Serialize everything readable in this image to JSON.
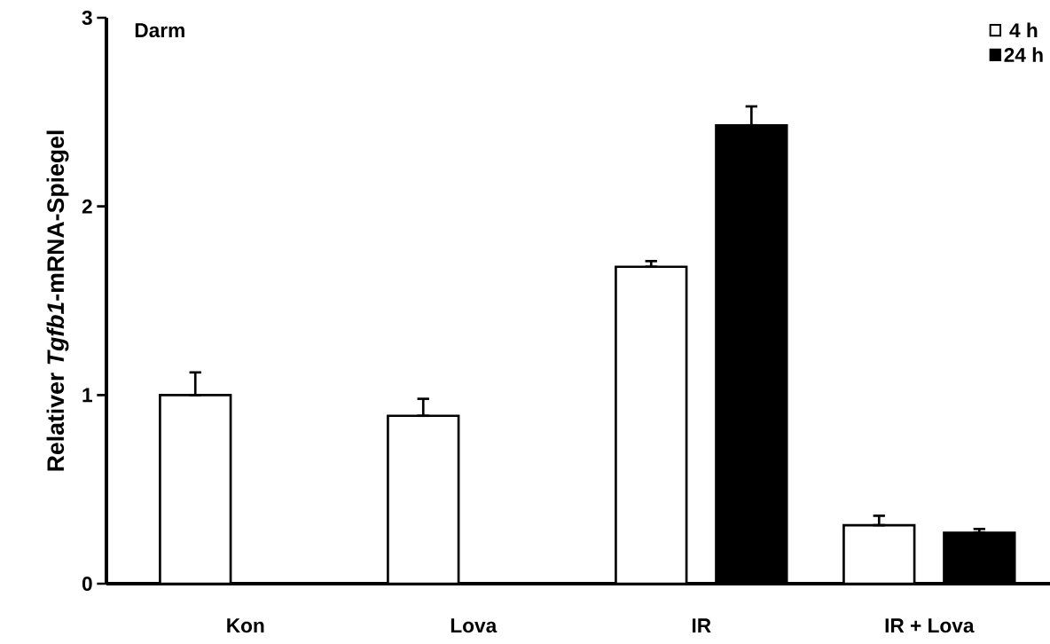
{
  "chart_data": {
    "type": "bar",
    "title": "Darm",
    "ylabel": "Relativer *Tgfb1*-mRNA-Spiegel",
    "categories": [
      "Kon",
      "Lova",
      "IR",
      "IR + Lova"
    ],
    "series": [
      {
        "name": "4 h",
        "color": "#ffffff",
        "values": [
          1.0,
          0.89,
          1.68,
          0.31
        ],
        "errors": [
          [
            1.0,
            1.12
          ],
          [
            0.89,
            0.98
          ],
          [
            1.68,
            1.71
          ],
          [
            0.31,
            0.36
          ]
        ]
      },
      {
        "name": "24 h",
        "color": "#000000",
        "values": [
          null,
          null,
          2.43,
          0.27
        ],
        "errors": [
          null,
          null,
          [
            2.43,
            2.53
          ],
          [
            0.27,
            0.29
          ]
        ]
      }
    ],
    "ylim": [
      0,
      3
    ],
    "yticks": [
      0,
      1,
      2,
      3
    ],
    "legend": "top right"
  }
}
